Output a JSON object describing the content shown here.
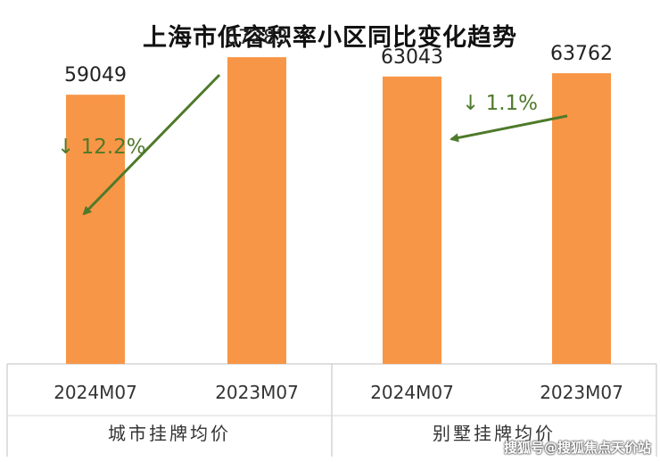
{
  "chart_data": {
    "type": "bar",
    "title": "上海市低容积率小区同比变化趋势",
    "groups": [
      {
        "name": "城市挂牌均价",
        "categories": [
          "2024M07",
          "2023M07"
        ],
        "values": [
          59049,
          67283
        ],
        "change_label": "12.2%",
        "change_direction": "down"
      },
      {
        "name": "别墅挂牌均价",
        "categories": [
          "2024M07",
          "2023M07"
        ],
        "values": [
          63043,
          63762
        ],
        "change_label": "1.1%",
        "change_direction": "down"
      }
    ],
    "ylim": [
      0,
      72000
    ],
    "grid": false,
    "bar_color": "#F79646",
    "arrow_color": "#4E7A2A",
    "axis_color": "#BFBFBF"
  },
  "watermark": "搜狐号@搜狐焦点天价站"
}
